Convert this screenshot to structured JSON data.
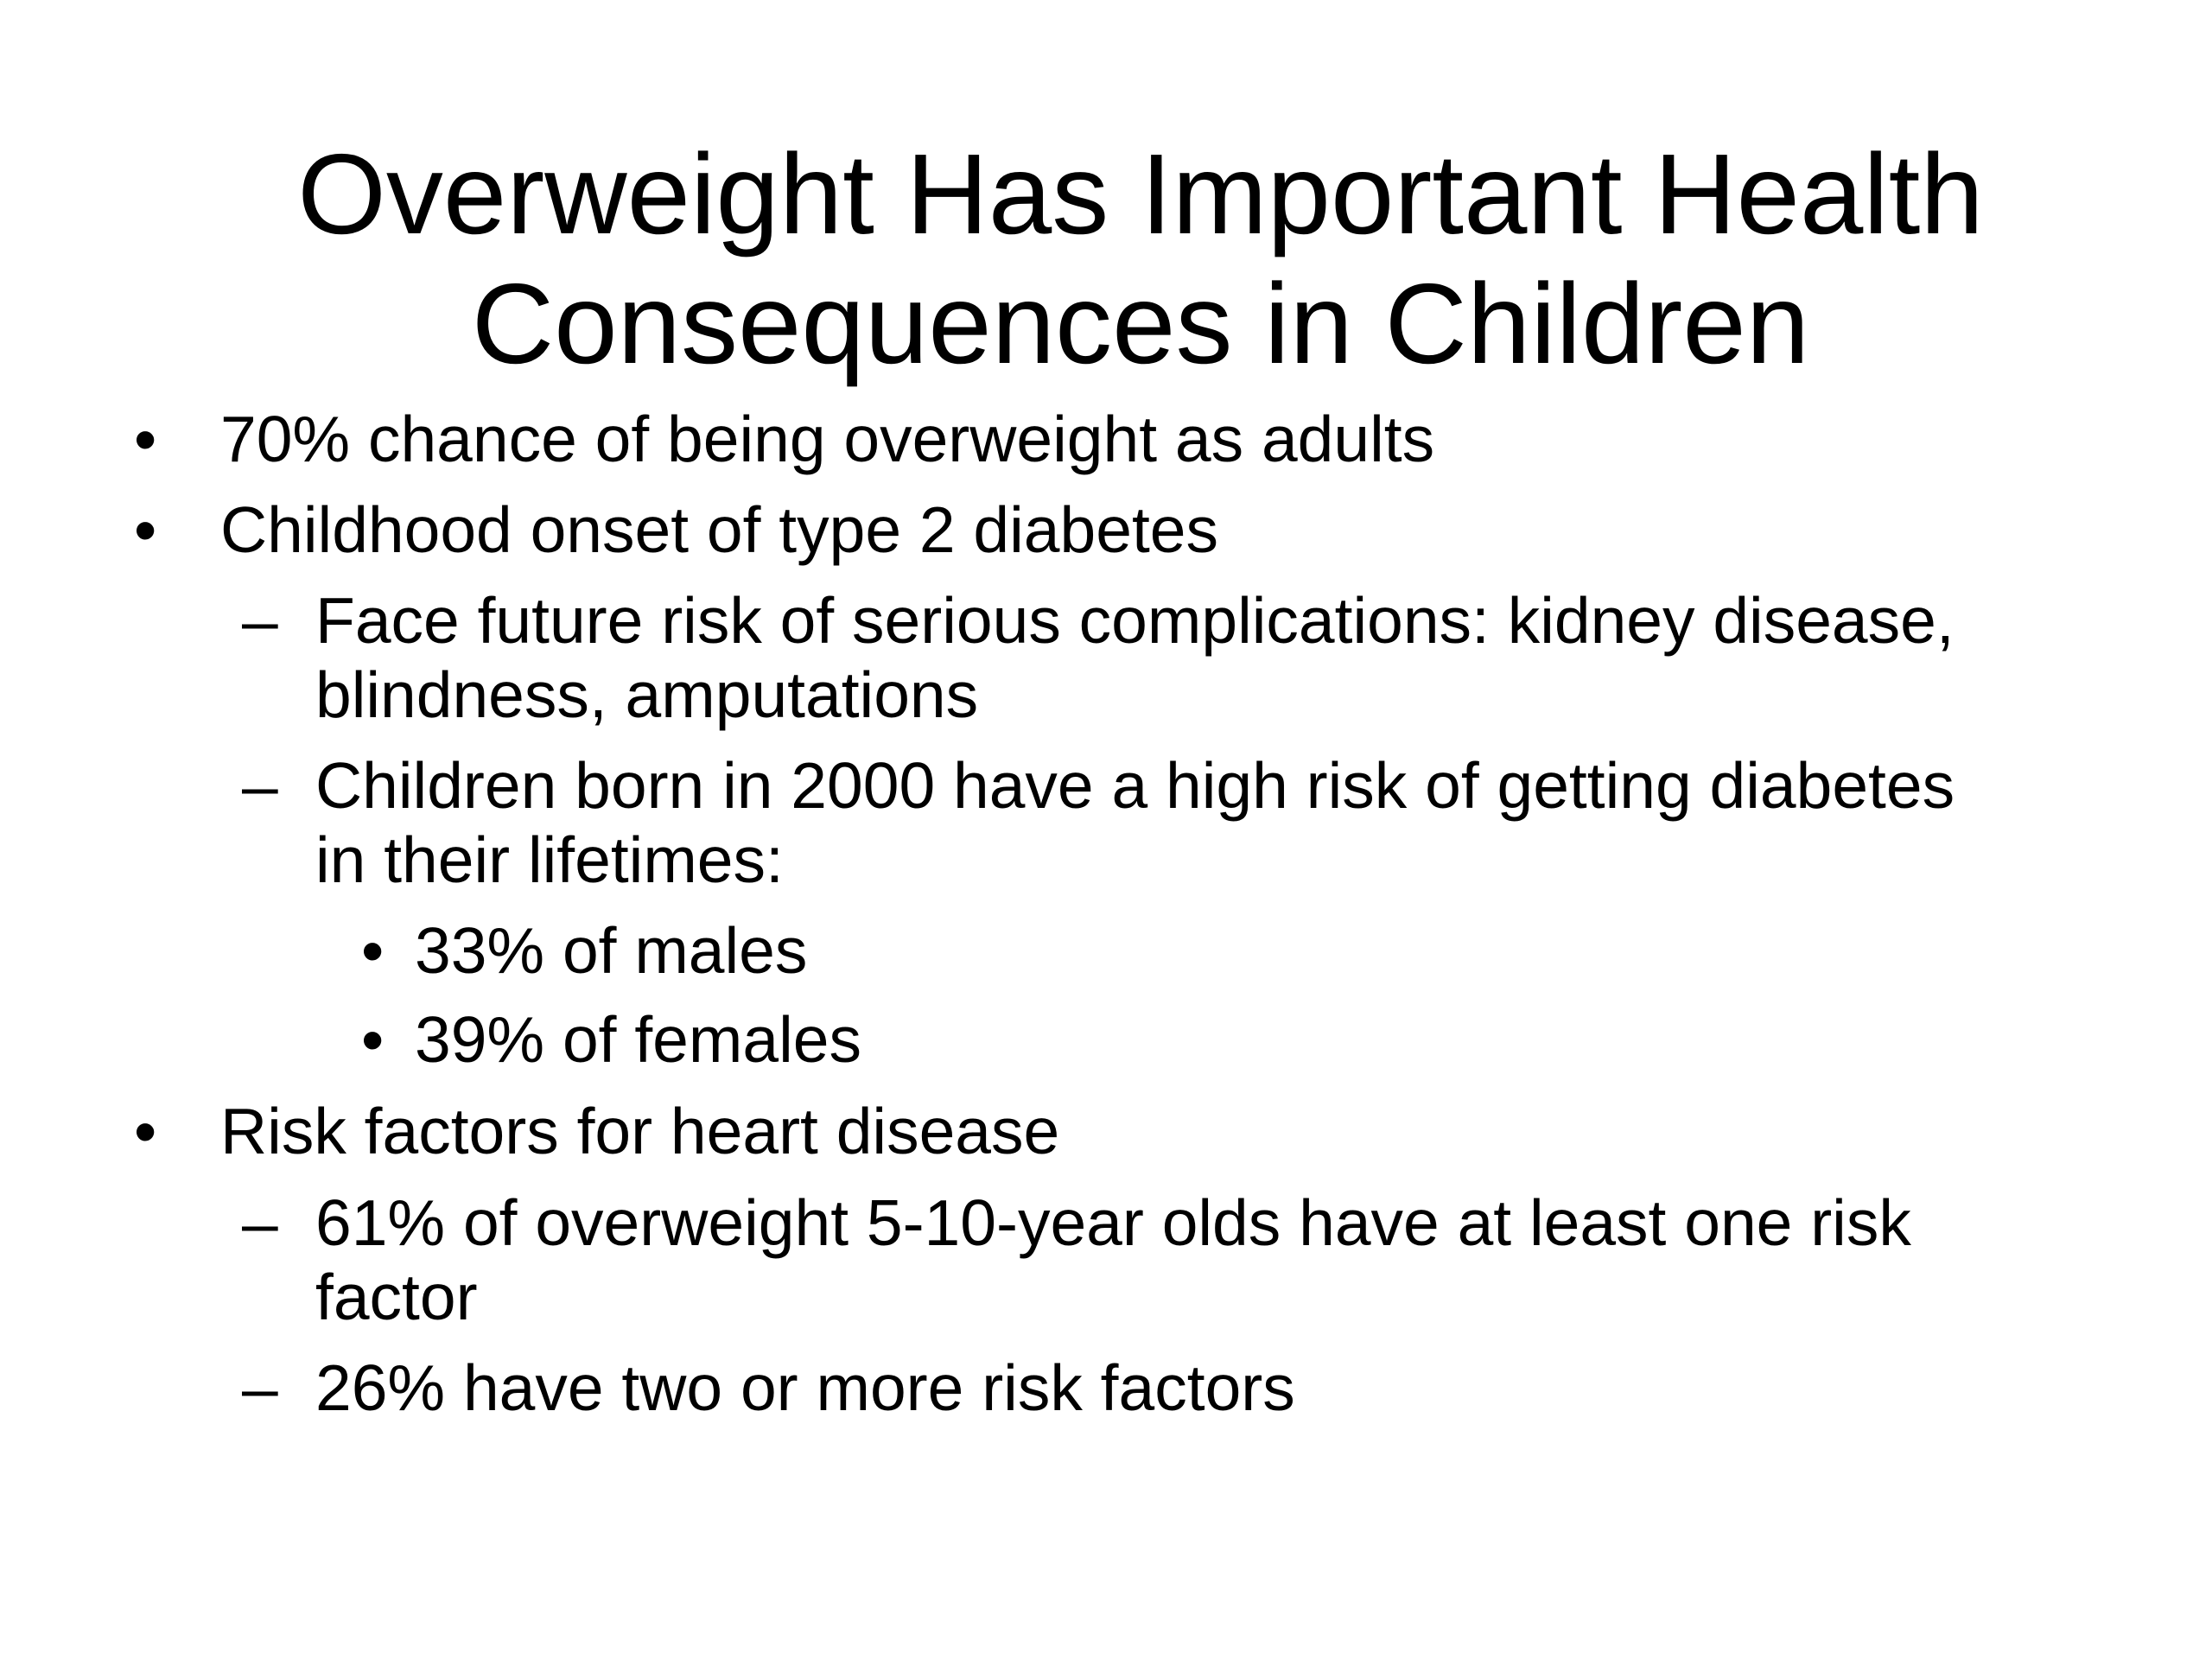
{
  "slide": {
    "title_lines": [
      "Overweight Has Important Health",
      "Consequences in Children"
    ],
    "items": [
      {
        "marker": "•",
        "lines": [
          "70% chance of being overweight as adults"
        ]
      },
      {
        "marker": "•",
        "lines": [
          "Childhood onset of type 2 diabetes"
        ]
      },
      {
        "marker": "–",
        "lines": [
          "Face future risk of serious complications:  kidney disease,",
          "blindness, amputations"
        ]
      },
      {
        "marker": "–",
        "lines": [
          "Children born in 2000 have a high risk of getting diabetes",
          "in their lifetimes:"
        ]
      },
      {
        "marker": "•",
        "lines": [
          "33% of males"
        ]
      },
      {
        "marker": "•",
        "lines": [
          "39% of females"
        ]
      },
      {
        "marker": "•",
        "lines": [
          "Risk factors for heart disease"
        ]
      },
      {
        "marker": "–",
        "lines": [
          "61% of overweight 5-10-year olds have at least one risk",
          "factor"
        ]
      },
      {
        "marker": "–",
        "lines": [
          "26% have two or more risk factors"
        ]
      }
    ]
  }
}
